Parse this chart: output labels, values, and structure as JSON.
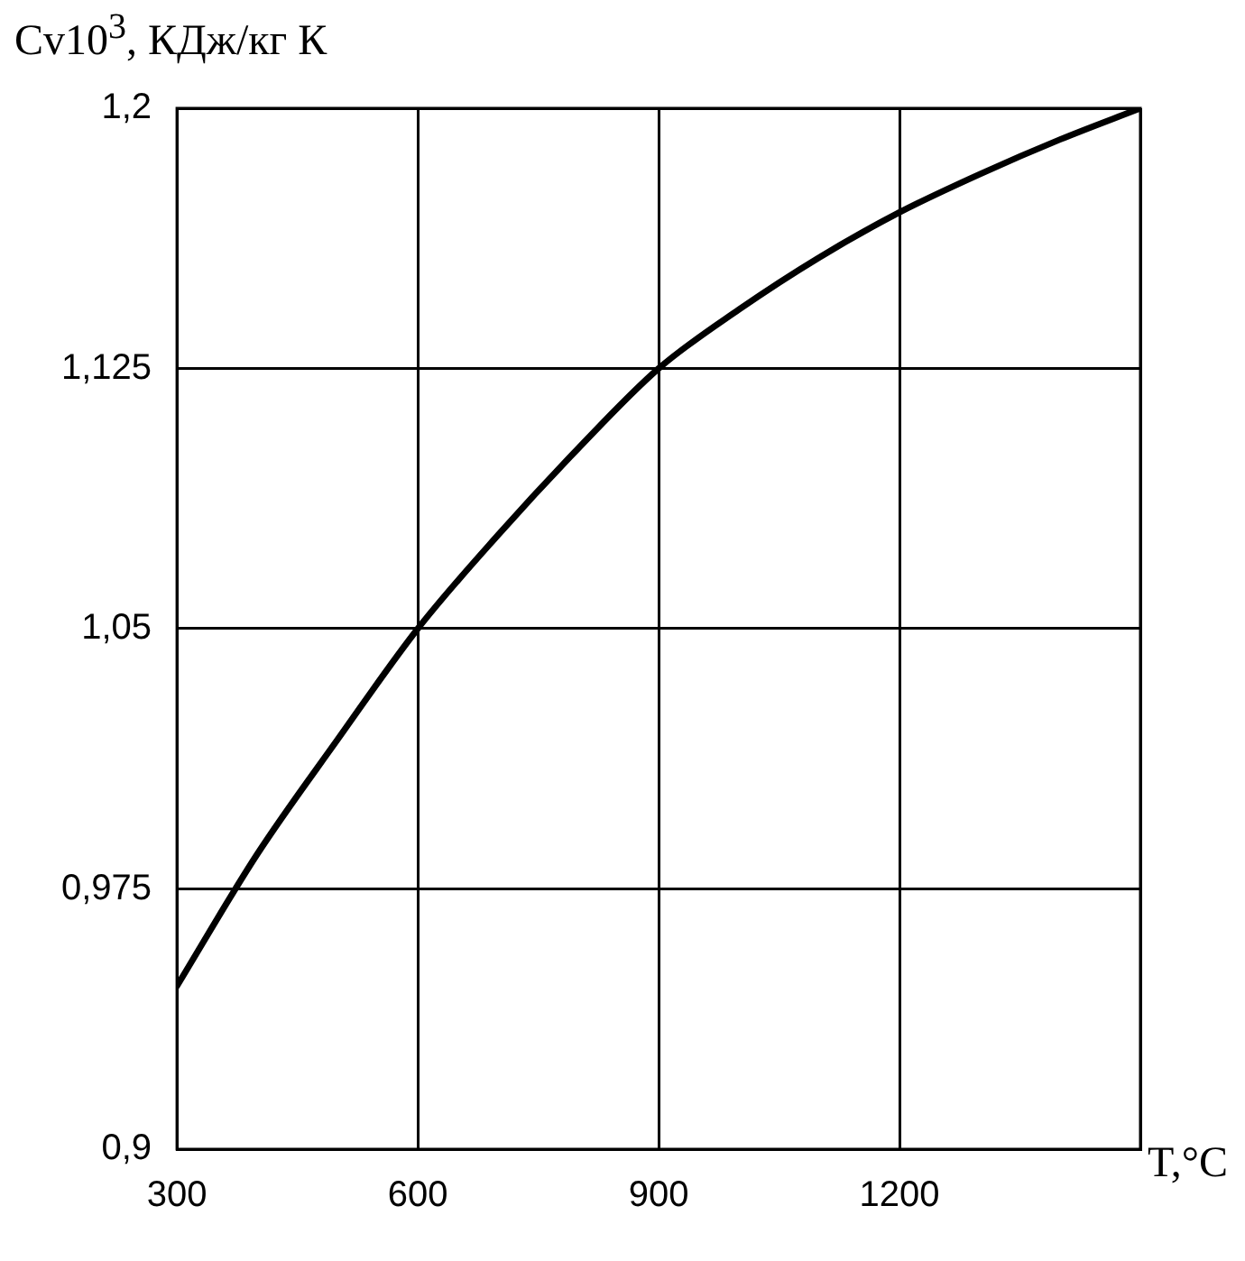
{
  "chart_data": {
    "type": "line",
    "xlabel": "T,°C",
    "ylabel": "Cv10$^{3}$, КДж/кг К",
    "x": [
      300,
      400,
      500,
      600,
      700,
      800,
      900,
      1000,
      1100,
      1200,
      1300,
      1400,
      1500
    ],
    "series": [
      {
        "color": "#000000",
        "values": [
          0.947,
          0.985,
          1.018,
          1.05,
          1.077,
          1.102,
          1.125,
          1.142,
          1.157,
          1.17,
          1.181,
          1.191,
          1.2
        ]
      }
    ],
    "xlim": [
      300,
      1500
    ],
    "xticks": [
      300,
      600,
      900,
      1200,
      {
        "value": 1500,
        "label": null
      }
    ],
    "ylim": [
      0.9,
      1.2
    ],
    "yticks": [
      {
        "value": 0.9,
        "label": "0,9"
      },
      {
        "value": 0.975,
        "label": "0,975"
      },
      {
        "value": 1.05,
        "label": "1,05"
      },
      {
        "value": 1.125,
        "label": "1,125"
      },
      {
        "value": 1.2,
        "label": "1,2"
      }
    ],
    "grid": true,
    "legend": false,
    "marker": "none",
    "line_style": "solid"
  }
}
